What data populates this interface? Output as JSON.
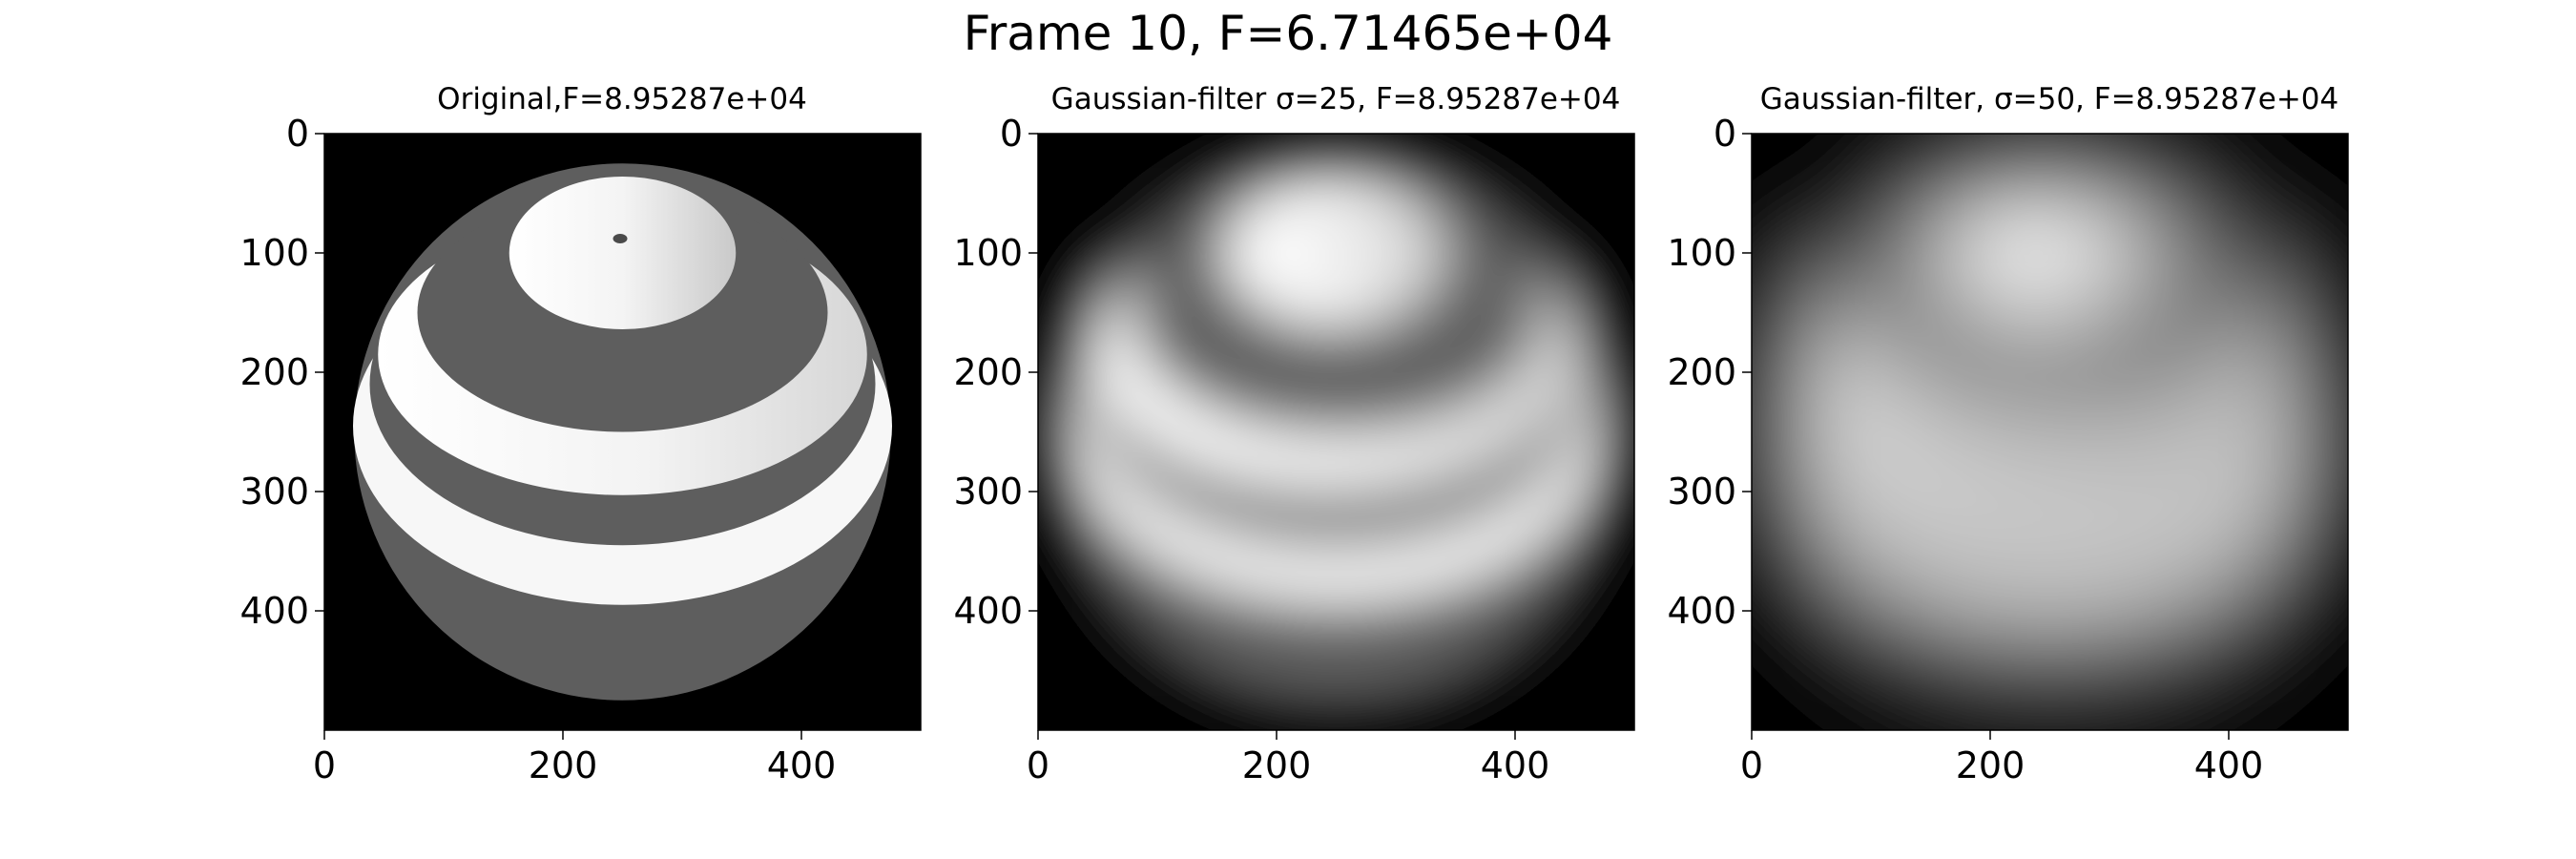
{
  "suptitle": "Frame 10, F=6.71465e+04",
  "chart_data": [
    {
      "type": "heatmap",
      "title": "Original,F=8.95287e+04",
      "content": "sphere with alternating light and dark horizontal bands on black background",
      "xlim": [
        0,
        500
      ],
      "ylim": [
        500,
        0
      ],
      "xticks": [
        0,
        200,
        400
      ],
      "yticks": [
        0,
        100,
        200,
        300,
        400
      ],
      "colormap": "gray"
    },
    {
      "type": "heatmap",
      "title": "Gaussian-filter σ=25, F=8.95287e+04",
      "content": "blurred banded sphere",
      "sigma": 25,
      "xlim": [
        0,
        500
      ],
      "ylim": [
        500,
        0
      ],
      "xticks": [
        0,
        200,
        400
      ],
      "yticks": [
        0,
        100,
        200,
        300,
        400
      ],
      "colormap": "gray"
    },
    {
      "type": "heatmap",
      "title": "Gaussian-filter, σ=50, F=8.95287e+04",
      "content": "strongly blurred sphere",
      "sigma": 50,
      "xlim": [
        0,
        500
      ],
      "ylim": [
        500,
        0
      ],
      "xticks": [
        0,
        200,
        400
      ],
      "yticks": [
        0,
        100,
        200,
        300,
        400
      ],
      "colormap": "gray"
    }
  ]
}
